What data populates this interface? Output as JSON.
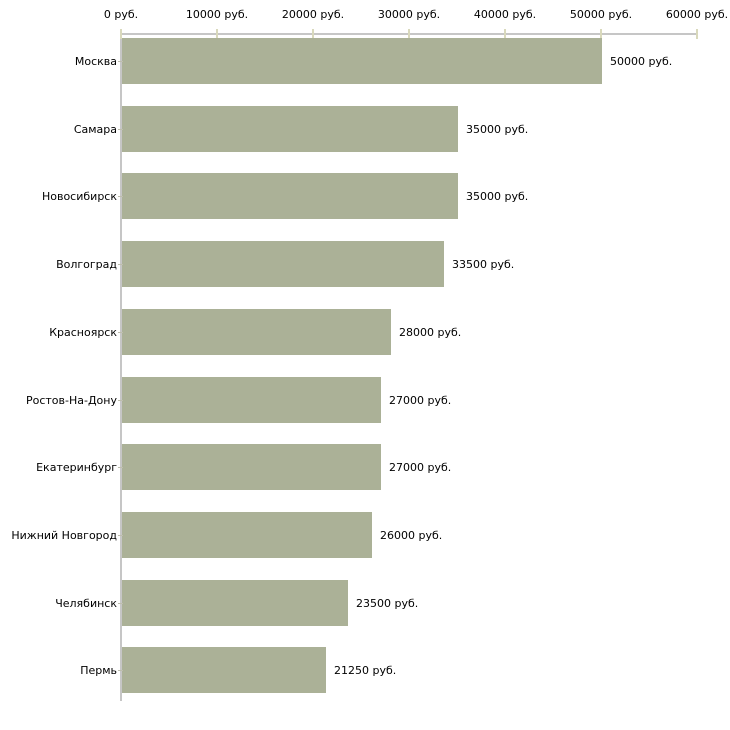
{
  "chart_data": {
    "type": "bar",
    "orientation": "horizontal",
    "title": "",
    "xlabel": "",
    "ylabel": "",
    "unit": "руб.",
    "grid": "off",
    "legend": "none",
    "categories": [
      "Москва",
      "Самара",
      "Новосибирск",
      "Волгоград",
      "Красноярск",
      "Ростов-На-Дону",
      "Екатеринбург",
      "Нижний Новгород",
      "Челябинск",
      "Пермь"
    ],
    "values": [
      50000,
      35000,
      35000,
      33500,
      28000,
      27000,
      27000,
      26000,
      23500,
      21250
    ],
    "value_labels": [
      "50000 руб.",
      "35000 руб.",
      "35000 руб.",
      "33500 руб.",
      "28000 руб.",
      "27000 руб.",
      "27000 руб.",
      "26000 руб.",
      "23500 руб.",
      "21250 руб."
    ],
    "x_axis": {
      "position": "top",
      "range": [
        0,
        60000
      ],
      "ticks": [
        0,
        10000,
        20000,
        30000,
        40000,
        50000,
        60000
      ],
      "tick_labels": [
        "0 руб.",
        "10000 руб.",
        "20000 руб.",
        "30000 руб.",
        "40000 руб.",
        "50000 руб.",
        "60000 руб."
      ]
    },
    "colors": {
      "bar": "#abb197",
      "axis_line": "#c6c6c6",
      "axis_tick": "#d9d9bc",
      "category_tick": "#bebeae",
      "text": "#000000",
      "background": "#ffffff"
    }
  }
}
